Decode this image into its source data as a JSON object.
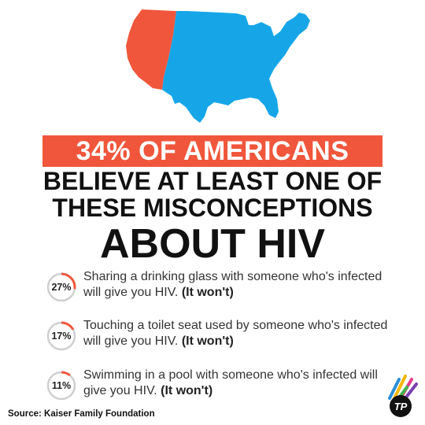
{
  "headline": {
    "highlight": "34% OF AMERICANS",
    "line2": "BELIEVE AT LEAST ONE OF",
    "line3": "THESE MISCONCEPTIONS",
    "line4": "ABOUT HIV"
  },
  "colors": {
    "accent": "#f0563b",
    "map_west": "#f0563b",
    "map_east": "#16a6e8",
    "ring_track": "#cfcfcf"
  },
  "stats": [
    {
      "percent_label": "27%",
      "percent_value": 27,
      "text": "Sharing a drinking glass with someone who's infected will give you HIV.",
      "note": "(It won't)"
    },
    {
      "percent_label": "17%",
      "percent_value": 17,
      "text": "Touching a toilet seat used by someone who's infected will give you HIV.",
      "note": "(It won't)"
    },
    {
      "percent_label": "11%",
      "percent_value": 11,
      "text": "Swimming in a pool with someone who's infected will give you HIV.",
      "note": "(It won't)"
    }
  ],
  "source": "Source: Kaiser Family Foundation",
  "logo": {
    "text": "TP"
  }
}
